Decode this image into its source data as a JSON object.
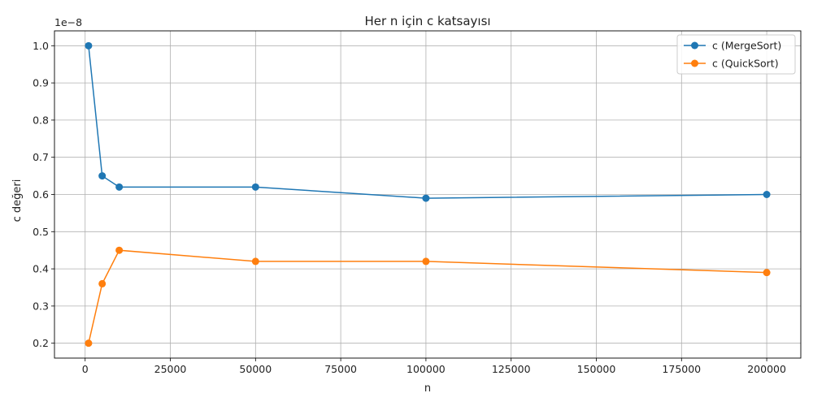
{
  "chart_data": {
    "type": "line",
    "title": "Her n için c katsayısı",
    "xlabel": "n",
    "ylabel": "c değeri",
    "y_scale_note": "1e−8",
    "x": [
      1000,
      5000,
      10000,
      50000,
      100000,
      200000
    ],
    "series": [
      {
        "name": "c (MergeSort)",
        "color": "#1f77b4",
        "values": [
          1.0,
          0.65,
          0.62,
          0.62,
          0.59,
          0.6
        ]
      },
      {
        "name": "c (QuickSort)",
        "color": "#ff7f0e",
        "values": [
          0.2,
          0.36,
          0.45,
          0.42,
          0.42,
          0.39
        ]
      }
    ],
    "xlim": [
      -9000,
      210000
    ],
    "ylim": [
      0.16,
      1.04
    ],
    "xticks": [
      0,
      25000,
      50000,
      75000,
      100000,
      125000,
      150000,
      175000,
      200000
    ],
    "yticks": [
      0.2,
      0.3,
      0.4,
      0.5,
      0.6,
      0.7,
      0.8,
      0.9,
      1.0
    ],
    "xtick_labels": [
      "0",
      "25000",
      "50000",
      "75000",
      "100000",
      "125000",
      "150000",
      "175000",
      "200000"
    ],
    "ytick_labels": [
      "0.2",
      "0.3",
      "0.4",
      "0.5",
      "0.6",
      "0.7",
      "0.8",
      "0.9",
      "1.0"
    ],
    "grid": true,
    "legend_position": "top-right"
  }
}
